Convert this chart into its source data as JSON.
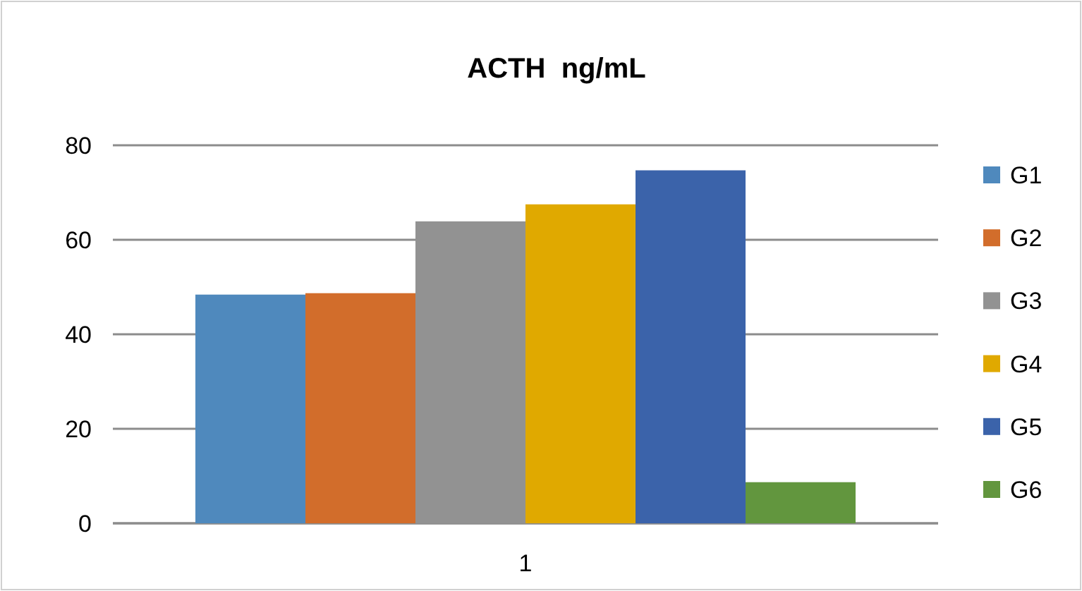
{
  "chart_data": {
    "type": "bar",
    "title": "ACTH  ng/mL",
    "categories": [
      "1"
    ],
    "series": [
      {
        "name": "G1",
        "color": "#4f89bd",
        "values": [
          48.4
        ]
      },
      {
        "name": "G2",
        "color": "#d26d2b",
        "values": [
          48.7
        ]
      },
      {
        "name": "G3",
        "color": "#929292",
        "values": [
          63.9
        ]
      },
      {
        "name": "G4",
        "color": "#e0a900",
        "values": [
          67.5
        ]
      },
      {
        "name": "G5",
        "color": "#3b63aa",
        "values": [
          74.7
        ]
      },
      {
        "name": "G6",
        "color": "#62963e",
        "values": [
          8.7
        ]
      }
    ],
    "ylim": [
      0,
      80
    ],
    "yticks": [
      0,
      20,
      40,
      60,
      80
    ],
    "grid": "y",
    "legend": "right"
  }
}
